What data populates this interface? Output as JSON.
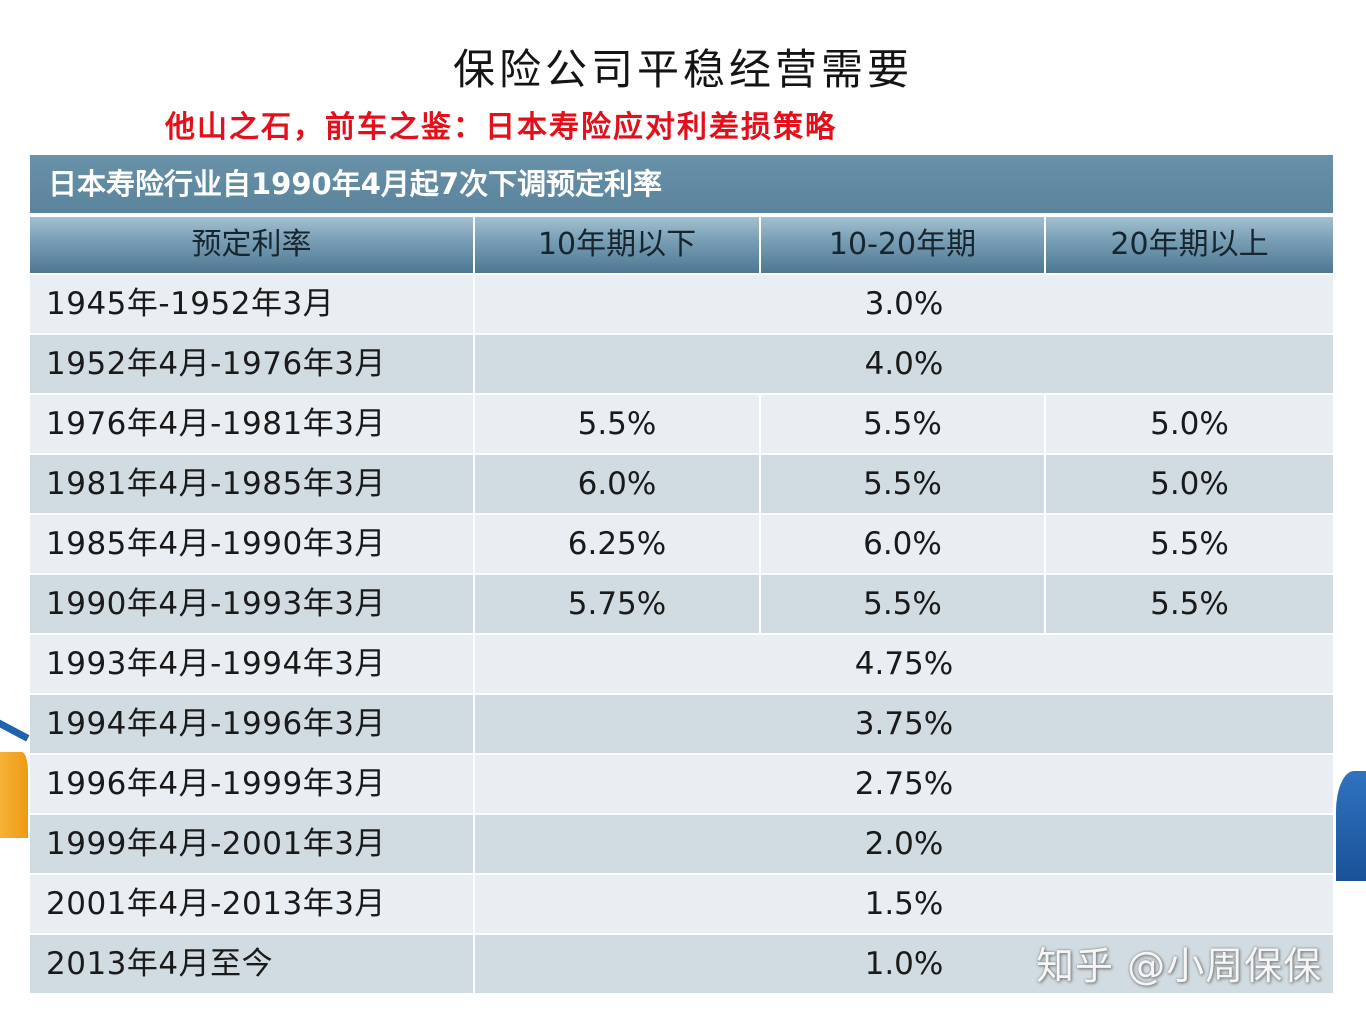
{
  "slide": {
    "title": "保险公司平稳经营需要",
    "subtitle": "他山之石，前车之鉴：日本寿险应对利差损策略"
  },
  "table": {
    "caption": "日本寿险行业自1990年4月起7次下调预定利率",
    "headers": [
      "预定利率",
      "10年期以下",
      "10-20年期",
      "20年期以上"
    ],
    "rows": [
      {
        "period": "1945年-1952年3月",
        "rates": [
          "3.0%"
        ]
      },
      {
        "period": "1952年4月-1976年3月",
        "rates": [
          "4.0%"
        ]
      },
      {
        "period": "1976年4月-1981年3月",
        "rates": [
          "5.5%",
          "5.5%",
          "5.0%"
        ]
      },
      {
        "period": "1981年4月-1985年3月",
        "rates": [
          "6.0%",
          "5.5%",
          "5.0%"
        ]
      },
      {
        "period": "1985年4月-1990年3月",
        "rates": [
          "6.25%",
          "6.0%",
          "5.5%"
        ]
      },
      {
        "period": "1990年4月-1993年3月",
        "rates": [
          "5.75%",
          "5.5%",
          "5.5%"
        ]
      },
      {
        "period": "1993年4月-1994年3月",
        "rates": [
          "4.75%"
        ]
      },
      {
        "period": "1994年4月-1996年3月",
        "rates": [
          "3.75%"
        ]
      },
      {
        "period": "1996年4月-1999年3月",
        "rates": [
          "2.75%"
        ]
      },
      {
        "period": "1999年4月-2001年3月",
        "rates": [
          "2.0%"
        ]
      },
      {
        "period": "2001年4月-2013年3月",
        "rates": [
          "1.5%"
        ]
      },
      {
        "period": "2013年4月至今",
        "rates": [
          "1.0%"
        ]
      }
    ]
  },
  "watermark": "知乎 @小周保保",
  "colors": {
    "subtitle": "#e3101b",
    "caption_bar": "#5e89a1",
    "header_row": "#6f97ae",
    "row_light": "#e8eef1",
    "row_dark": "#d1dce2",
    "decor_blue": "#1f62ad",
    "decor_orange": "#f2a21b"
  }
}
